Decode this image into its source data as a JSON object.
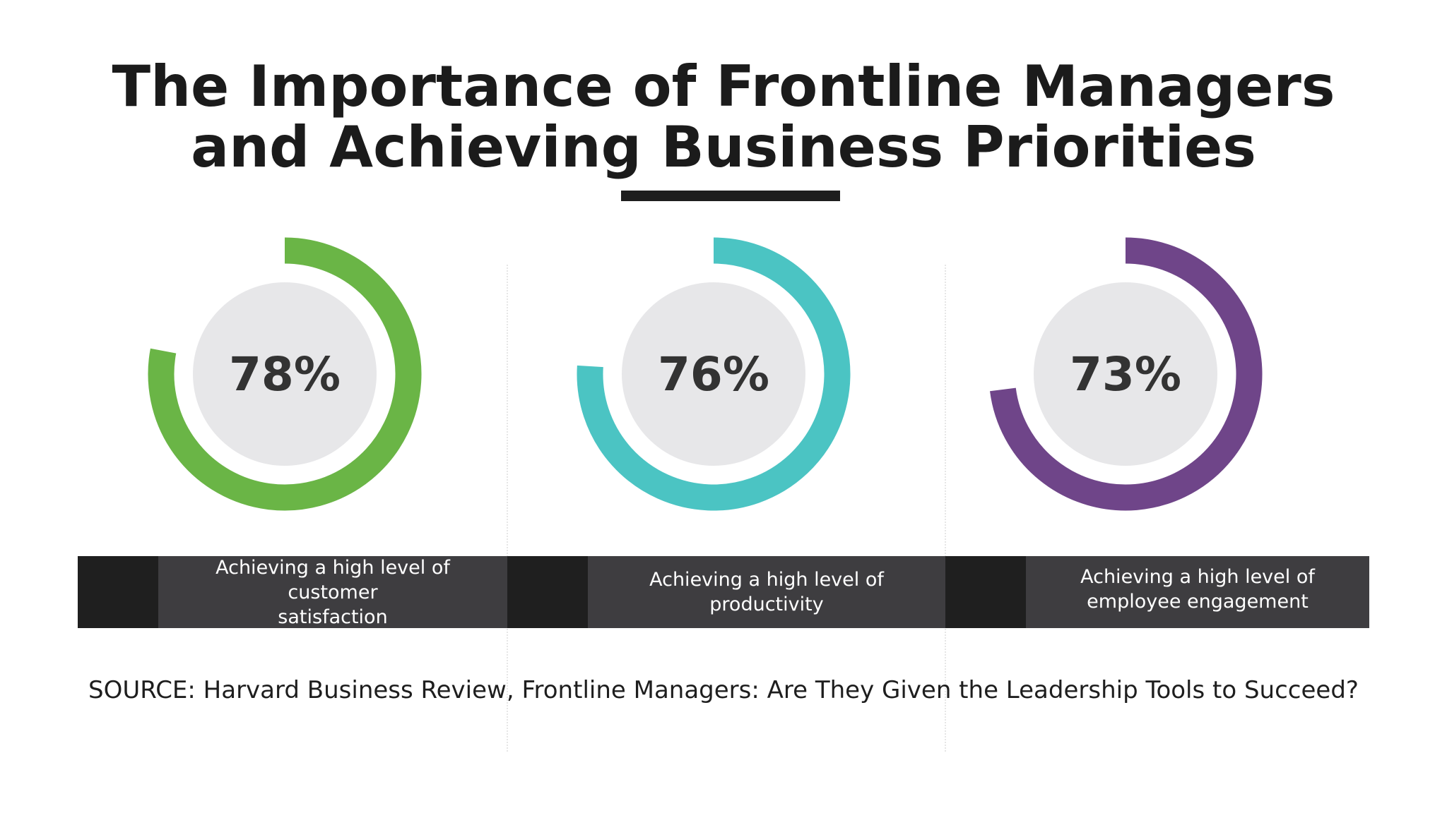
{
  "title": {
    "line1": "The Importance of Frontline Managers",
    "line2": "and Achieving Business Priorities"
  },
  "chart_data": {
    "type": "pie",
    "series": [
      {
        "value": 78,
        "value_label": "78%",
        "label": "Achieving a high level of customer satisfaction",
        "label_lines": [
          "Achieving a high level of customer",
          "satisfaction"
        ],
        "color": "#6ab546"
      },
      {
        "value": 76,
        "value_label": "76%",
        "label": "Achieving a high level of productivity",
        "label_lines": [
          "Achieving a high level of",
          "productivity"
        ],
        "color": "#4bc4c3"
      },
      {
        "value": 73,
        "value_label": "73%",
        "label": "Achieving a high level of employee engagement",
        "label_lines": [
          "Achieving a high level of",
          "employee engagement"
        ],
        "color": "#6f4589"
      }
    ],
    "inner_circle_color": "#e7e7e9"
  },
  "source": "SOURCE: Harvard Business Review, Frontline Managers: Are They Given the Leadership Tools to Succeed?"
}
